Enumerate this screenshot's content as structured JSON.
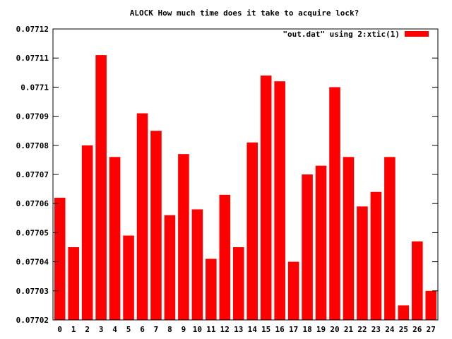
{
  "chart_data": {
    "type": "bar",
    "title": "ALOCK How much time does it take to acquire lock?",
    "legend_label": "\"out.dat\" using 2:xtic(1)",
    "legend_position": "top-right",
    "bar_color": "#ff0000",
    "grid": false,
    "ylim": [
      0.07702,
      0.07712
    ],
    "yticks": [
      "0.07702",
      "0.07703",
      "0.07704",
      "0.07705",
      "0.07706",
      "0.07707",
      "0.07708",
      "0.07709",
      "0.0771",
      "0.07711",
      "0.07712"
    ],
    "categories": [
      "0",
      "1",
      "2",
      "3",
      "4",
      "5",
      "6",
      "7",
      "8",
      "9",
      "10",
      "11",
      "12",
      "13",
      "14",
      "15",
      "16",
      "17",
      "18",
      "19",
      "20",
      "21",
      "22",
      "23",
      "24",
      "25",
      "26",
      "27"
    ],
    "values": [
      0.077062,
      0.077045,
      0.07708,
      0.077111,
      0.077076,
      0.077049,
      0.077091,
      0.077085,
      0.077056,
      0.077077,
      0.077058,
      0.077041,
      0.077063,
      0.077045,
      0.077081,
      0.077104,
      0.077102,
      0.07704,
      0.07707,
      0.077073,
      0.0771,
      0.077076,
      0.077059,
      0.077064,
      0.077076,
      0.077025,
      0.077047,
      0.07703
    ]
  }
}
